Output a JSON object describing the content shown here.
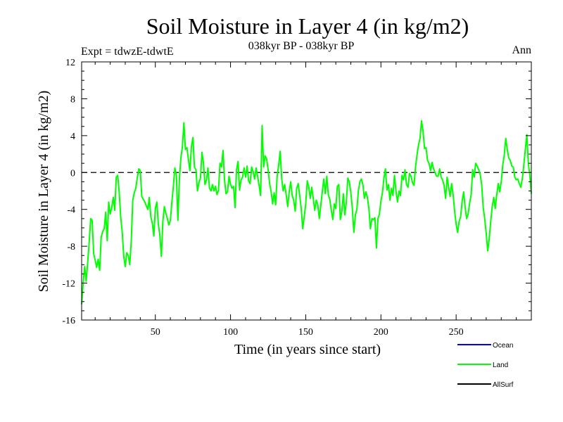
{
  "chart_data": {
    "type": "line",
    "title": "Soil Moisture in Layer 4 (in kg/m2)",
    "subtitle": "038kyr BP - 038kyr BP",
    "experiment": "Expt = tdwzE-tdwtE",
    "season": "Ann",
    "xlabel": "Time (in years since start)",
    "ylabel": "Soil Moisture in Layer 4 (in kg/m2)",
    "xlim": [
      1,
      300
    ],
    "ylim": [
      -16,
      12
    ],
    "x_ticks": [
      50,
      100,
      150,
      200,
      250
    ],
    "y_ticks": [
      12,
      8,
      4,
      0,
      -4,
      -8,
      -12,
      -16
    ],
    "reference_line": 0,
    "legend": [
      {
        "name": "Ocean",
        "color": "#0000ff"
      },
      {
        "name": "Land",
        "color": "#00ff00"
      },
      {
        "name": "AllSurf",
        "color": "#000000"
      }
    ],
    "series": [
      {
        "name": "Land",
        "color": "#00ff00",
        "x_start": 1,
        "x_step": 1,
        "values": [
          -14.3,
          -12.0,
          -10.2,
          -11.8,
          -9.8,
          -7.6,
          -5.0,
          -5.2,
          -8.8,
          -9.5,
          -10.3,
          -9.4,
          -10.6,
          -7.0,
          -6.4,
          -6.1,
          -4.3,
          -7.4,
          -3.2,
          -4.5,
          -3.8,
          -2.7,
          -4.1,
          -0.5,
          -0.3,
          -2.2,
          -4.9,
          -6.5,
          -9.1,
          -10.2,
          -8.7,
          -9.0,
          -10.0,
          -7.4,
          -3.0,
          -2.2,
          -1.7,
          -0.6,
          0.4,
          0.2,
          -2.6,
          -2.9,
          -3.2,
          -3.6,
          -4.0,
          -2.7,
          -4.8,
          -5.5,
          -6.9,
          -3.9,
          -3.2,
          -5.6,
          -6.8,
          -9.1,
          -5.3,
          -3.7,
          -4.4,
          -5.0,
          -5.7,
          -5.2,
          -3.2,
          -1.5,
          0.5,
          -0.3,
          -5.2,
          -0.7,
          1.6,
          2.8,
          5.4,
          2.5,
          2.7,
          1.4,
          0.2,
          2.8,
          3.8,
          0.6,
          0.3,
          -2.0,
          -1.1,
          -0.6,
          2.2,
          1.0,
          -1.3,
          -0.8,
          0.5,
          -1.7,
          -2.0,
          -1.3,
          -2.0,
          -1.5,
          -2.4,
          -1.9,
          1.0,
          0.6,
          2.4,
          -0.8,
          -2.3,
          -2.1,
          -0.4,
          -1.3,
          -1.7,
          -1.5,
          -3.8,
          0.3,
          1.2,
          -1.9,
          -0.8,
          -0.5,
          0.5,
          -0.5,
          0.7,
          -0.9,
          -1.2,
          0.6,
          0.1,
          -0.7,
          0.5,
          -0.4,
          -1.4,
          -2.5,
          5.1,
          0.6,
          1.8,
          1.5,
          0.3,
          -1.2,
          -2.1,
          -3.4,
          -2.2,
          -3.5,
          -0.4,
          0.8,
          2.3,
          -0.6,
          -2.0,
          -1.3,
          -2.4,
          -3.7,
          -2.1,
          -1.0,
          -2.5,
          -3.0,
          -4.2,
          -1.7,
          -1.2,
          -2.5,
          -3.9,
          -6.1,
          -4.8,
          -3.4,
          -0.9,
          -1.5,
          -2.8,
          -1.6,
          -2.8,
          -4.1,
          -3.0,
          -3.5,
          -5.0,
          -3.6,
          -2.1,
          -0.7,
          -2.3,
          -0.4,
          -2.4,
          -2.9,
          -4.1,
          -5.1,
          -3.4,
          -3.9,
          -1.5,
          -1.3,
          -5.1,
          -4.2,
          -2.3,
          -4.6,
          -3.2,
          -0.6,
          -1.0,
          -2.2,
          -3.9,
          -6.5,
          -4.6,
          -4.0,
          -2.0,
          -1.0,
          -0.7,
          -1.3,
          -2.8,
          -2.1,
          -2.7,
          -3.9,
          -6.1,
          -5.0,
          -5.1,
          -4.9,
          -8.2,
          -5.0,
          -4.5,
          -3.1,
          -2.2,
          -0.6,
          0.4,
          -1.9,
          -1.3,
          -3.0,
          -1.7,
          -2.5,
          -0.3,
          -2.0,
          -3.2,
          -2.0,
          -2.5,
          -0.3,
          -0.8,
          0.3,
          -1.3,
          -1.6,
          -0.1,
          -0.4,
          -1.1,
          -1.4,
          0.6,
          1.9,
          3.0,
          3.7,
          5.6,
          4.5,
          2.6,
          2.7,
          1.3,
          1.0,
          0.2,
          1.1,
          0.4,
          0.0,
          -0.4,
          -0.4,
          0.4,
          -0.5,
          -0.8,
          -1.4,
          -2.8,
          -0.5,
          -1.6,
          -2.6,
          -1.2,
          -2.4,
          -4.2,
          -5.6,
          -6.5,
          -5.3,
          -4.8,
          -3.1,
          -2.1,
          -3.8,
          -5.0,
          -4.5,
          -3.3,
          -2.4,
          0.3,
          -0.5,
          1.0,
          0.7,
          0.3,
          -0.2,
          -1.3,
          -3.8,
          -5.0,
          -6.6,
          -8.5,
          -7.2,
          -5.3,
          -3.7,
          -2.7,
          -3.9,
          -2.4,
          -1.2,
          -2.1,
          -1.0,
          0.8,
          1.9,
          3.7,
          2.5,
          1.6,
          1.3,
          0.7,
          0.6,
          -0.5,
          -0.8,
          -0.7,
          -1.2,
          -1.6,
          -0.7,
          0.8,
          2.5,
          4.1,
          1.0,
          -0.3,
          -2.3
        ]
      }
    ]
  }
}
